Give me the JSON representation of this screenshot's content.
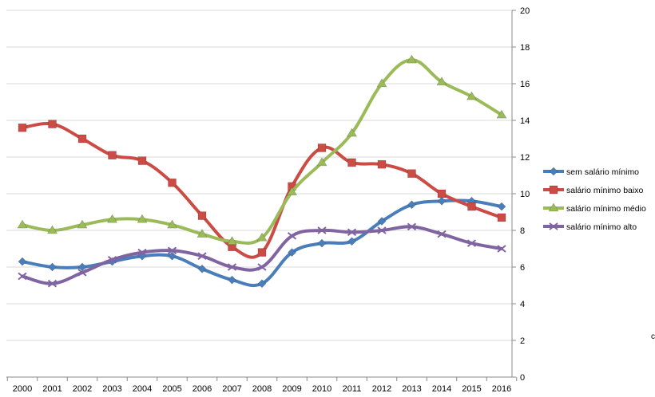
{
  "chart_data": {
    "type": "line",
    "title": "",
    "xlabel": "",
    "ylabel": "",
    "ylim": [
      0,
      20
    ],
    "yticks": [
      0,
      2,
      4,
      6,
      8,
      10,
      12,
      14,
      16,
      18,
      20
    ],
    "y_axis_position": "right",
    "grid": true,
    "legend_position": "right",
    "categories": [
      "2000",
      "2001",
      "2002",
      "2003",
      "2004",
      "2005",
      "2006",
      "2007",
      "2008",
      "2009",
      "2010",
      "2011",
      "2012",
      "2013",
      "2014",
      "2015",
      "2016"
    ],
    "series": [
      {
        "name": "sem salário mínimo",
        "color": "#4a7ebb",
        "marker": "diamond",
        "values": [
          6.3,
          6.0,
          6.0,
          6.3,
          6.6,
          6.6,
          5.9,
          5.3,
          5.1,
          6.8,
          7.3,
          7.4,
          8.5,
          9.4,
          9.6,
          9.6,
          9.3
        ]
      },
      {
        "name": "salário mínimo baixo",
        "color": "#cc4b45",
        "marker": "square",
        "values": [
          13.6,
          13.8,
          13.0,
          12.1,
          11.8,
          10.6,
          8.8,
          7.1,
          6.8,
          10.4,
          12.5,
          11.7,
          11.6,
          11.1,
          10.0,
          9.3,
          8.7
        ]
      },
      {
        "name": "salário mínimo médio",
        "color": "#9bbb59",
        "marker": "triangle",
        "values": [
          8.3,
          8.0,
          8.3,
          8.6,
          8.6,
          8.3,
          7.8,
          7.4,
          7.6,
          10.1,
          11.7,
          13.3,
          16.0,
          17.3,
          16.1,
          15.3,
          14.3
        ]
      },
      {
        "name": "salário mínimo alto",
        "color": "#8064a2",
        "marker": "x",
        "values": [
          5.5,
          5.1,
          5.7,
          6.4,
          6.8,
          6.9,
          6.6,
          6.0,
          6.0,
          7.7,
          8.0,
          7.9,
          8.0,
          8.2,
          7.8,
          7.3,
          7.0
        ]
      }
    ],
    "stray_label": "c"
  }
}
